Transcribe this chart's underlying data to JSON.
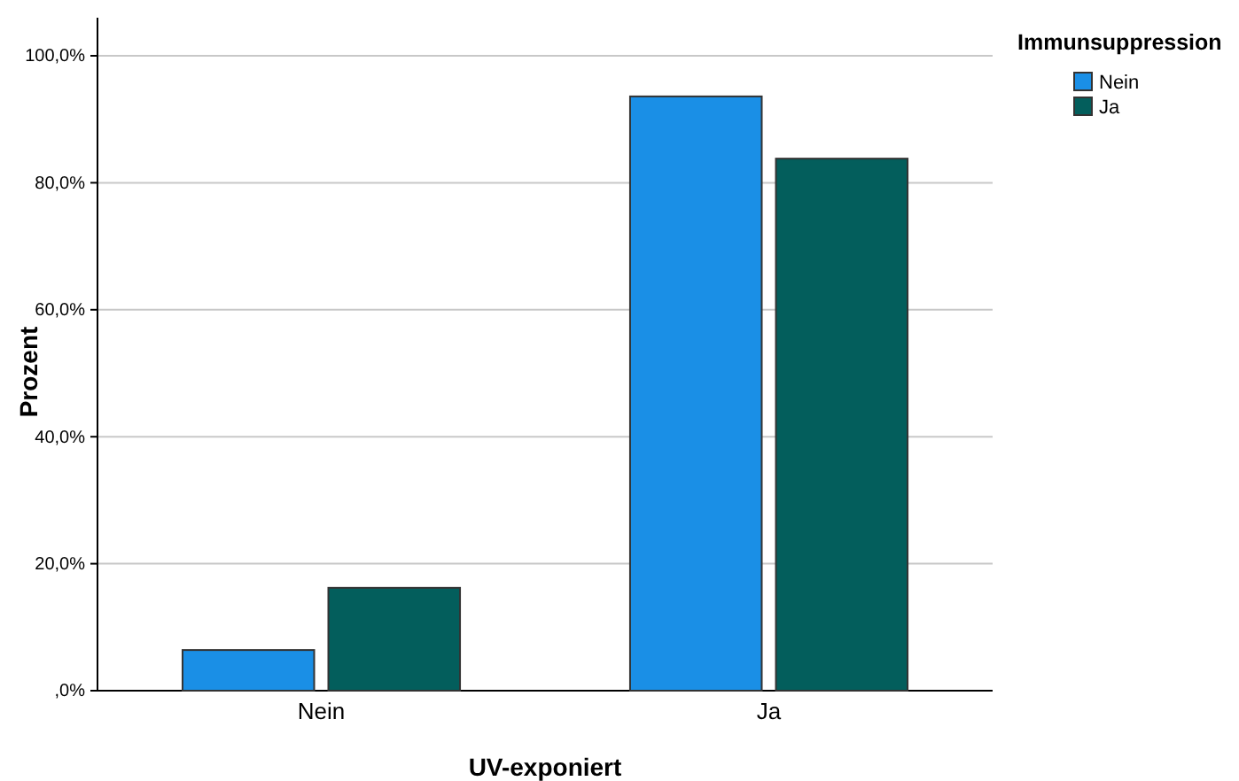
{
  "chart_data": {
    "type": "bar",
    "xlabel": "UV-exponiert",
    "ylabel": "Prozent",
    "legend_title": "Immunsuppression",
    "categories": [
      "Nein",
      "Ja"
    ],
    "series": [
      {
        "name": "Nein",
        "color": "#1a8fe6",
        "values": [
          6.4,
          93.6
        ]
      },
      {
        "name": "Ja",
        "color": "#035e5c",
        "values": [
          16.2,
          83.8
        ]
      }
    ],
    "ylim": [
      0,
      100
    ],
    "yticks": [
      {
        "value": 0,
        "label": ",0%"
      },
      {
        "value": 20,
        "label": "20,0%"
      },
      {
        "value": 40,
        "label": "40,0%"
      },
      {
        "value": 60,
        "label": "60,0%"
      },
      {
        "value": 80,
        "label": "80,0%"
      },
      {
        "value": 100,
        "label": "100,0%"
      }
    ],
    "grid": "y",
    "legend": "top right"
  }
}
